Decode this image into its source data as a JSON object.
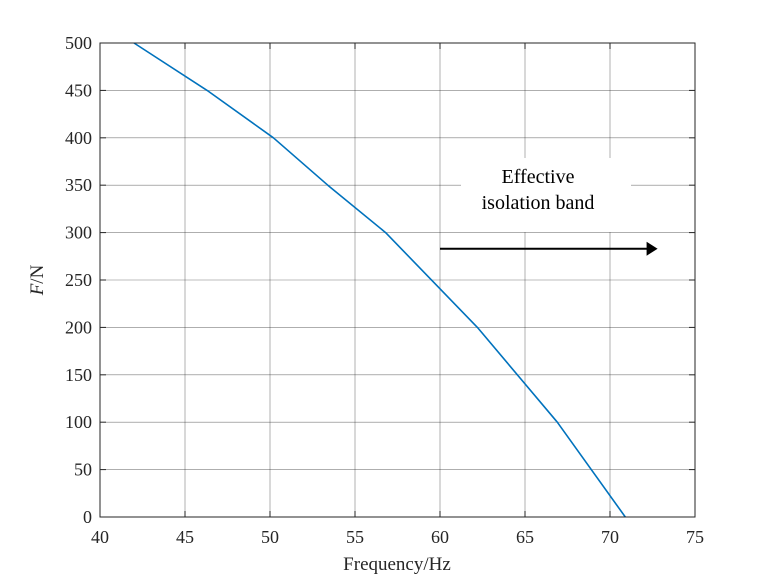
{
  "chart_data": {
    "type": "line",
    "title": "",
    "xlabel": "Frequency/Hz",
    "ylabel_italic": "F",
    "ylabel_rest": "/N",
    "xlim": [
      40,
      75
    ],
    "ylim": [
      0,
      500
    ],
    "xticks": [
      40,
      45,
      50,
      55,
      60,
      65,
      70,
      75
    ],
    "yticks": [
      0,
      50,
      100,
      150,
      200,
      250,
      300,
      350,
      400,
      450,
      500
    ],
    "grid": true,
    "series": [
      {
        "color": "#0072bd",
        "x": [
          42.0,
          46.3,
          50.2,
          53.4,
          56.8,
          62.2,
          66.9,
          70.9
        ],
        "y": [
          500,
          450,
          400,
          350,
          300,
          200,
          100,
          0
        ]
      }
    ],
    "annotation": {
      "line1": "Effective",
      "line2": "isolation band",
      "arrow_from_x": 60.0,
      "arrow_to_x": 72.8,
      "arrow_y": 283
    }
  }
}
